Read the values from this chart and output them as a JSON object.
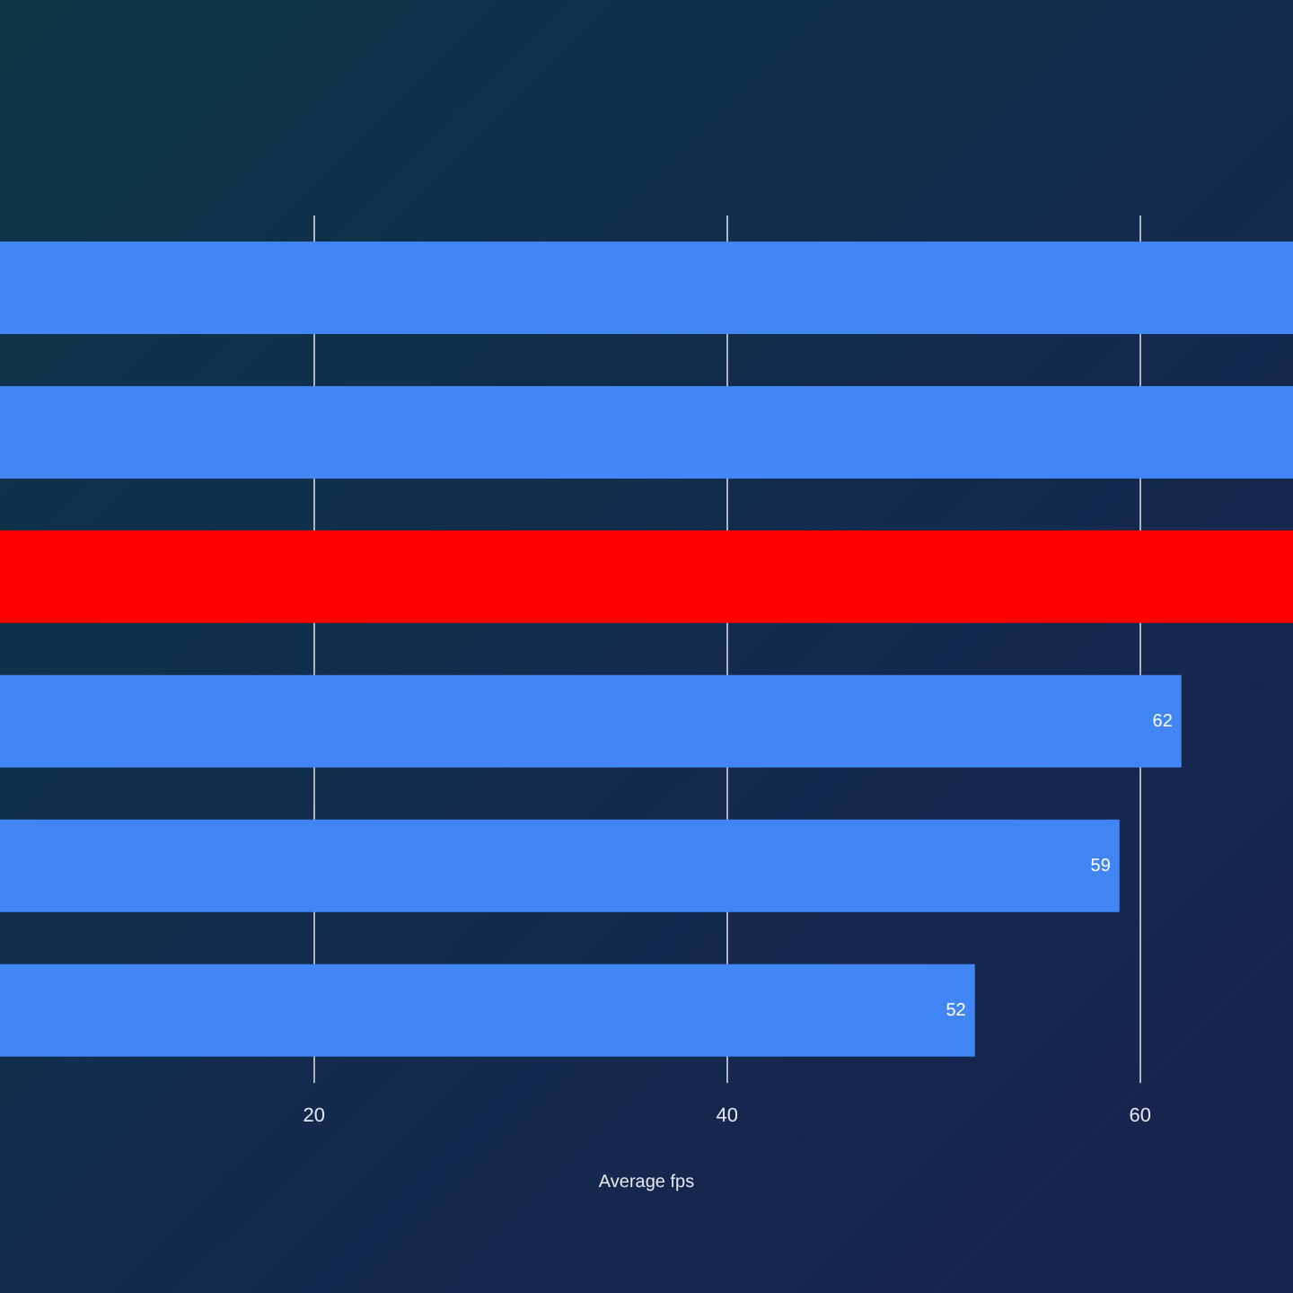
{
  "chart_data": {
    "type": "bar",
    "orientation": "horizontal",
    "xlabel": "Average fps",
    "categories": [
      null,
      null,
      null,
      null,
      null,
      null
    ],
    "values": [
      67.4,
      67.4,
      67.4,
      62,
      59,
      52
    ],
    "colors": [
      "#4285f4",
      "#4285f4",
      "#ff0000",
      "#4285f4",
      "#4285f4",
      "#4285f4"
    ],
    "value_labels": [
      null,
      null,
      null,
      "62",
      "59",
      "52"
    ],
    "xlim": [
      4.8,
      67.4
    ],
    "xticks": [
      20,
      40,
      60
    ],
    "grid": "x",
    "legend": false,
    "tick_labels": "x"
  }
}
